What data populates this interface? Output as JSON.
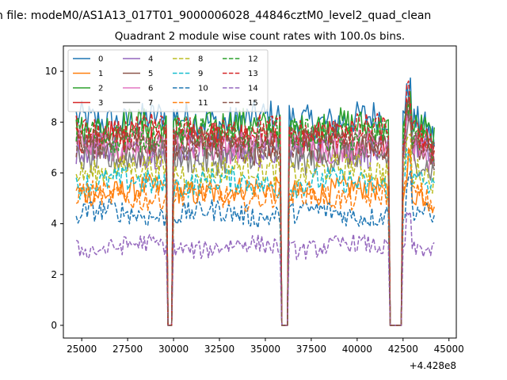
{
  "chart_data": {
    "type": "line",
    "suptitle": "n file: modeM0/AS1A13_017T01_9000006028_44846cztM0_level2_quad_clean",
    "title": "Quadrant 2 module wise count rates with 100.0s bins.",
    "xlabel": "",
    "ylabel": "",
    "x_offset_label": "+4.428e8",
    "xlim": [
      24000,
      45400
    ],
    "ylim": [
      -0.5,
      11
    ],
    "xticks": [
      25000,
      27500,
      30000,
      32500,
      35000,
      37500,
      40000,
      42500,
      45000
    ],
    "yticks": [
      0,
      2,
      4,
      6,
      8,
      10
    ],
    "x_start": 24700,
    "x_step": 100,
    "x_end": 44200,
    "gaps": [
      [
        29600,
        30000
      ],
      [
        35800,
        36300
      ],
      [
        41700,
        42500
      ]
    ],
    "legend_position": "upper-left",
    "legend_columns": 4,
    "series": [
      {
        "name": "0",
        "color": "#1f77b4",
        "dash": "solid",
        "level": 8.1
      },
      {
        "name": "1",
        "color": "#ff7f0e",
        "dash": "solid",
        "level": 5.3
      },
      {
        "name": "2",
        "color": "#2ca02c",
        "dash": "solid",
        "level": 7.8
      },
      {
        "name": "3",
        "color": "#d62728",
        "dash": "solid",
        "level": 7.3
      },
      {
        "name": "4",
        "color": "#9467bd",
        "dash": "solid",
        "level": 6.9
      },
      {
        "name": "5",
        "color": "#8c564b",
        "dash": "solid",
        "level": 7.0
      },
      {
        "name": "6",
        "color": "#e377c2",
        "dash": "solid",
        "level": 7.1
      },
      {
        "name": "7",
        "color": "#7f7f7f",
        "dash": "solid",
        "level": 6.6
      },
      {
        "name": "8",
        "color": "#bcbd22",
        "dash": "dashed",
        "level": 6.1
      },
      {
        "name": "9",
        "color": "#17becf",
        "dash": "dashed",
        "level": 5.6
      },
      {
        "name": "10",
        "color": "#1f77b4",
        "dash": "dashed",
        "level": 4.4
      },
      {
        "name": "11",
        "color": "#ff7f0e",
        "dash": "dashed",
        "level": 5.1
      },
      {
        "name": "12",
        "color": "#2ca02c",
        "dash": "dashed",
        "level": 7.5
      },
      {
        "name": "13",
        "color": "#d62728",
        "dash": "dashed",
        "level": 7.6
      },
      {
        "name": "14",
        "color": "#9467bd",
        "dash": "dashed",
        "level": 3.1
      },
      {
        "name": "15",
        "color": "#8c564b",
        "dash": "dashed",
        "level": 7.2
      }
    ]
  }
}
